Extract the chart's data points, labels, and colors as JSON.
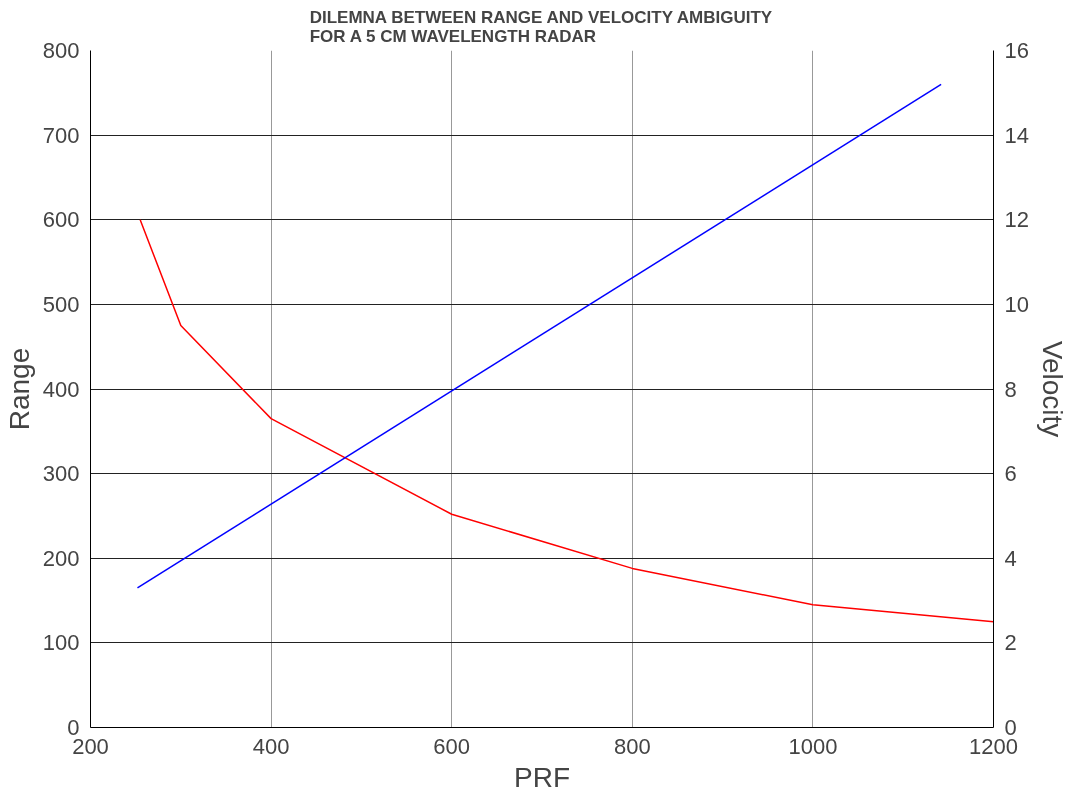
{
  "chart_data": {
    "type": "line",
    "title": "DILEMNA BETWEEN RANGE AND VELOCITY AMBIGUITY\nFOR A 5 CM WAVELENGTH RADAR",
    "xlabel": "PRF",
    "ylabel": "Range",
    "y2label": "Velocity",
    "xlim": [
      200,
      1200
    ],
    "xticks": [
      200,
      400,
      600,
      800,
      1000,
      1200
    ],
    "ylim": [
      0,
      800
    ],
    "yticks": [
      0,
      100,
      200,
      300,
      400,
      500,
      600,
      700,
      800
    ],
    "y2lim": [
      0,
      16
    ],
    "y2ticks": [
      0,
      2,
      4,
      6,
      8,
      10,
      12,
      14,
      16
    ],
    "grid": true,
    "marker": "none",
    "line_style": "solid",
    "series": [
      {
        "color": "#ff0000",
        "x": [
          255,
          300,
          400,
          600,
          800,
          1000,
          1200
        ],
        "values": [
          600,
          475,
          365,
          252,
          188,
          145,
          125
        ]
      },
      {
        "color": "#0000ff",
        "axis": "y2",
        "x": [
          252,
          1142
        ],
        "values": [
          3.3,
          15.2
        ]
      }
    ]
  }
}
